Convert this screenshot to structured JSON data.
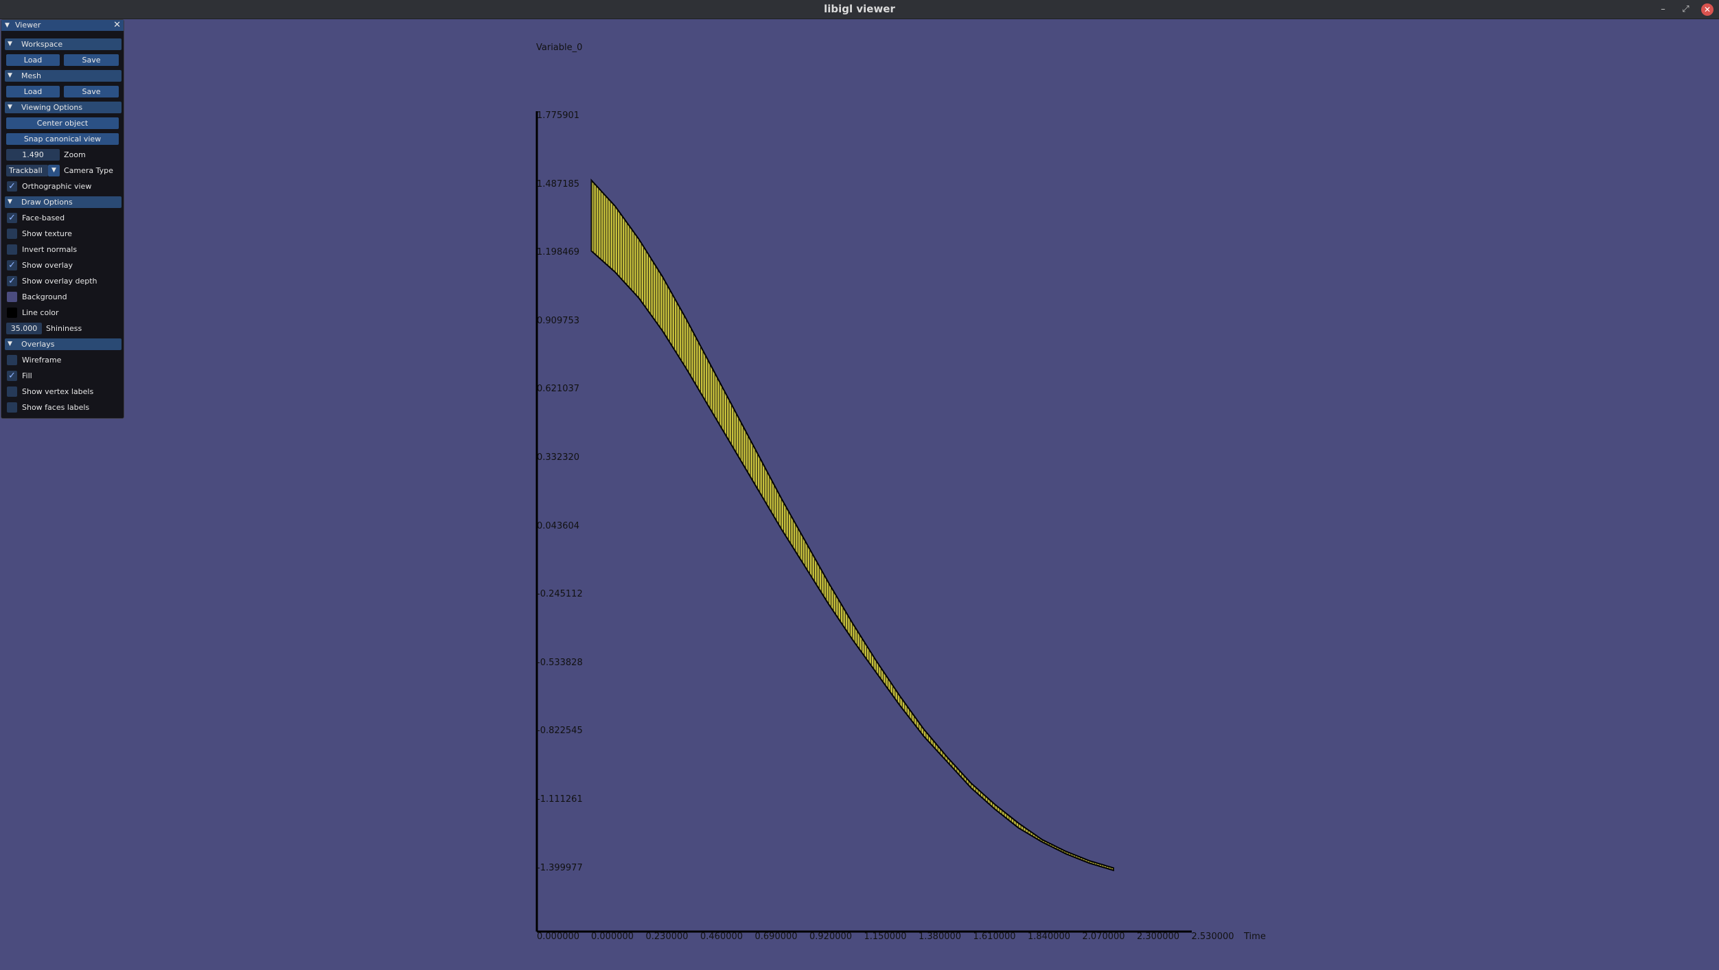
{
  "window": {
    "title": "libigl viewer",
    "buttons": {
      "minimize": "–",
      "maximize": "⤢",
      "close": "✕"
    }
  },
  "panel": {
    "title": "Viewer",
    "workspace": {
      "header": "Workspace",
      "load": "Load",
      "save": "Save"
    },
    "mesh": {
      "header": "Mesh",
      "load": "Load",
      "save": "Save"
    },
    "viewing_options": {
      "header": "Viewing Options",
      "center_object": "Center object",
      "snap_canonical_view": "Snap canonical view",
      "zoom_value": "1.490",
      "zoom_label": "Zoom",
      "camera_type_value": "Trackball",
      "camera_type_label": "Camera Type",
      "orthographic_label": "Orthographic view",
      "orthographic_checked": true
    },
    "draw_options": {
      "header": "Draw Options",
      "items": [
        {
          "label": "Face-based",
          "checked": true
        },
        {
          "label": "Show texture",
          "checked": false
        },
        {
          "label": "Invert normals",
          "checked": false
        },
        {
          "label": "Show overlay",
          "checked": true
        },
        {
          "label": "Show overlay depth",
          "checked": true
        }
      ],
      "background_label": "Background",
      "background_color": "#4b4c7e",
      "line_color_label": "Line color",
      "line_color": "#000000",
      "shininess_value": "35.000",
      "shininess_label": "Shininess"
    },
    "overlays": {
      "header": "Overlays",
      "items": [
        {
          "label": "Wireframe",
          "checked": false
        },
        {
          "label": "Fill",
          "checked": true
        },
        {
          "label": "Show vertex labels",
          "checked": false
        },
        {
          "label": "Show faces labels",
          "checked": false
        }
      ]
    }
  },
  "chart_data": {
    "type": "area",
    "title": "Variable_0",
    "ylabel": "",
    "xlabel": "Time",
    "y_ticks": [
      "1.775901",
      "1.487185",
      "1.198469",
      "0.909753",
      "0.621037",
      "0.332320",
      "0.043604",
      "-0.245112",
      "-0.533828",
      "-0.822545",
      "-1.111261",
      "-1.399977"
    ],
    "x_ticks": [
      "0.000000",
      "0.230000",
      "0.460000",
      "0.690000",
      "0.920000",
      "1.150000",
      "1.380000",
      "1.610000",
      "1.840000",
      "2.070000",
      "2.300000",
      "2.530000"
    ],
    "x_origin_label": "0.000000",
    "ylim": [
      -1.69,
      1.775901
    ],
    "xlim": [
      -0.23,
      2.53
    ],
    "fill_color": "#c9c23c",
    "series": [
      {
        "x": [
          0.0,
          0.1,
          0.2,
          0.3,
          0.4,
          0.5,
          0.6,
          0.7,
          0.8,
          0.9,
          1.0,
          1.1,
          1.2,
          1.3,
          1.4,
          1.5,
          1.6,
          1.7,
          1.8,
          1.9,
          2.0,
          2.1,
          2.2
        ],
        "upper": [
          1.5,
          1.39,
          1.25,
          1.09,
          0.91,
          0.72,
          0.53,
          0.34,
          0.15,
          -0.03,
          -0.21,
          -0.38,
          -0.54,
          -0.69,
          -0.83,
          -0.95,
          -1.06,
          -1.15,
          -1.23,
          -1.3,
          -1.35,
          -1.39,
          -1.42
        ],
        "lower": [
          1.2,
          1.11,
          1.0,
          0.86,
          0.7,
          0.53,
          0.36,
          0.19,
          0.02,
          -0.14,
          -0.3,
          -0.45,
          -0.59,
          -0.73,
          -0.86,
          -0.97,
          -1.08,
          -1.17,
          -1.25,
          -1.31,
          -1.36,
          -1.4,
          -1.43
        ]
      }
    ]
  }
}
